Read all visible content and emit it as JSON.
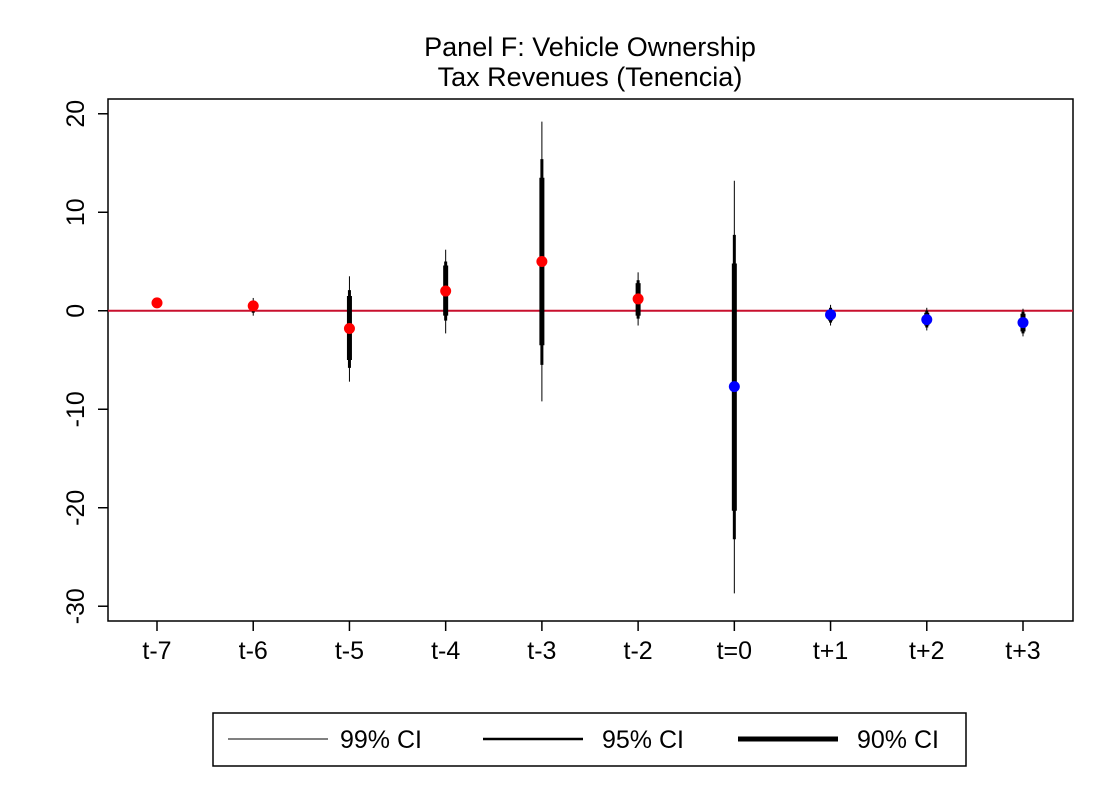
{
  "chart_data": {
    "type": "scatter",
    "title_line1": "Panel F: Vehicle Ownership",
    "title_line2": "Tax Revenues (Tenencia)",
    "xlabel": "",
    "ylabel": "",
    "ylim": [
      -31.5,
      21.5
    ],
    "yticks": [
      20,
      10,
      0,
      -10,
      -20,
      -30
    ],
    "categories": [
      "t-7",
      "t-6",
      "t-5",
      "t-4",
      "t-3",
      "t-2",
      "t=0",
      "t+1",
      "t+2",
      "t+3"
    ],
    "grid": false,
    "reference_line": 0,
    "points": [
      {
        "x": "t-7",
        "y": 0.8,
        "ci99": [
          0.8,
          0.8
        ],
        "ci95": [
          0.8,
          0.8
        ],
        "ci90": [
          0.8,
          0.8
        ],
        "color": "#ff0000"
      },
      {
        "x": "t-6",
        "y": 0.5,
        "ci99": [
          -0.5,
          1.3
        ],
        "ci95": [
          -0.2,
          1.0
        ],
        "ci90": [
          0.0,
          0.9
        ],
        "color": "#ff0000"
      },
      {
        "x": "t-5",
        "y": -1.8,
        "ci99": [
          -7.2,
          3.5
        ],
        "ci95": [
          -5.8,
          2.1
        ],
        "ci90": [
          -5.0,
          1.5
        ],
        "color": "#ff0000"
      },
      {
        "x": "t-4",
        "y": 2.0,
        "ci99": [
          -2.3,
          6.2
        ],
        "ci95": [
          -1.0,
          5.0
        ],
        "ci90": [
          -0.5,
          4.6
        ],
        "color": "#ff0000"
      },
      {
        "x": "t-3",
        "y": 5.0,
        "ci99": [
          -9.2,
          19.2
        ],
        "ci95": [
          -5.5,
          15.4
        ],
        "ci90": [
          -3.5,
          13.5
        ],
        "color": "#ff0000"
      },
      {
        "x": "t-2",
        "y": 1.2,
        "ci99": [
          -1.5,
          3.9
        ],
        "ci95": [
          -0.8,
          3.1
        ],
        "ci90": [
          -0.5,
          2.8
        ],
        "color": "#ff0000"
      },
      {
        "x": "t=0",
        "y": -7.7,
        "ci99": [
          -28.7,
          13.2
        ],
        "ci95": [
          -23.2,
          7.7
        ],
        "ci90": [
          -20.3,
          4.8
        ],
        "color": "#0000ff"
      },
      {
        "x": "t+1",
        "y": -0.4,
        "ci99": [
          -1.5,
          0.6
        ],
        "ci95": [
          -1.2,
          0.3
        ],
        "ci90": [
          -1.0,
          0.1
        ],
        "color": "#0000ff"
      },
      {
        "x": "t+2",
        "y": -0.9,
        "ci99": [
          -2.0,
          0.3
        ],
        "ci95": [
          -1.7,
          0.0
        ],
        "ci90": [
          -1.5,
          -0.2
        ],
        "color": "#0000ff"
      },
      {
        "x": "t+3",
        "y": -1.2,
        "ci99": [
          -2.6,
          0.2
        ],
        "ci95": [
          -2.3,
          -0.1
        ],
        "ci90": [
          -2.1,
          -0.3
        ],
        "color": "#0000ff"
      }
    ],
    "legend": {
      "position": "bottom",
      "entries": [
        {
          "label": "99% CI"
        },
        {
          "label": "95% CI"
        },
        {
          "label": "90% CI"
        }
      ]
    },
    "colors": {
      "pre_period": "#ff0000",
      "post_period": "#0000ff",
      "reference_line": "#c8102e",
      "ci": "#000000"
    }
  }
}
